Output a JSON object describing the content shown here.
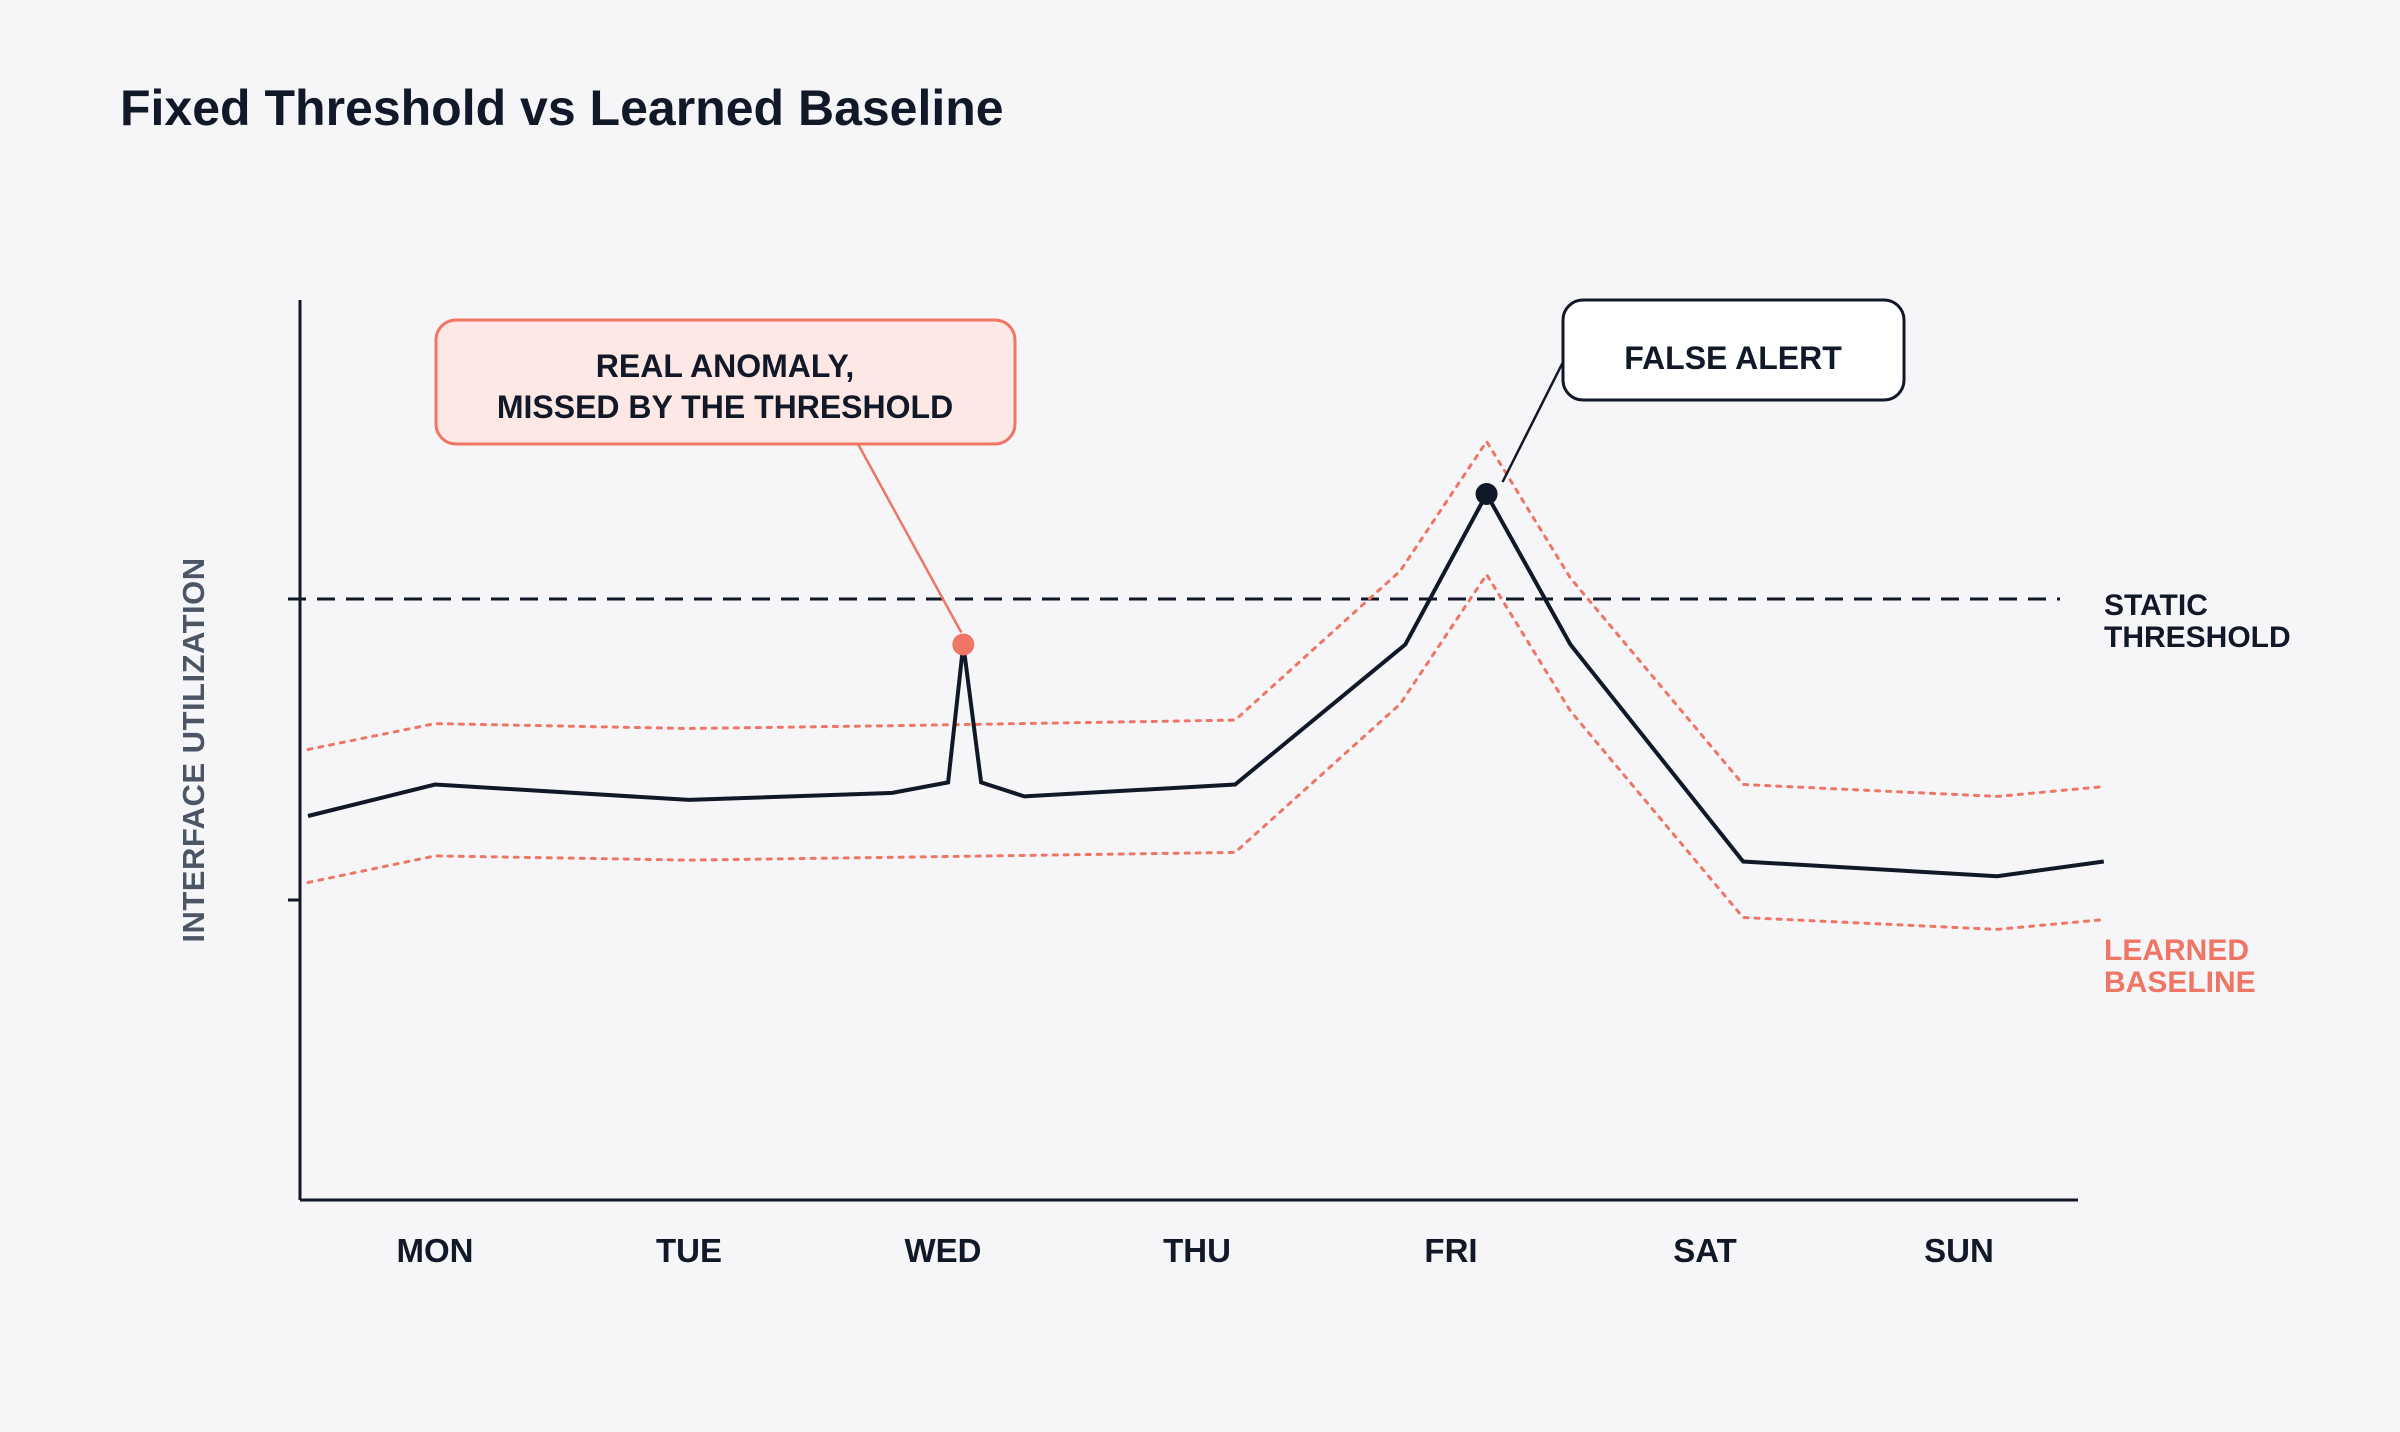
{
  "chart_data": {
    "type": "line",
    "title": "Fixed Threshold vs Learned Baseline",
    "xlabel": "",
    "ylabel": "INTERFACE UTILIZATION",
    "ylim": [
      0,
      100
    ],
    "grid": false,
    "categories": [
      "MON",
      "TUE",
      "WED",
      "THU",
      "FRI",
      "SAT",
      "SUN"
    ],
    "series": [
      {
        "role": "observed",
        "color": "#111827",
        "points": [
          {
            "x": 0.0,
            "y": 12
          },
          {
            "x": 0.5,
            "y": 16.5
          },
          {
            "x": 1.5,
            "y": 14.3
          },
          {
            "x": 2.3,
            "y": 15.3
          },
          {
            "x": 2.52,
            "y": 16.8
          },
          {
            "x": 2.58,
            "y": 36.5
          },
          {
            "x": 2.65,
            "y": 16.8
          },
          {
            "x": 2.82,
            "y": 14.8
          },
          {
            "x": 3.65,
            "y": 16.5
          },
          {
            "x": 4.32,
            "y": 36.5
          },
          {
            "x": 4.64,
            "y": 58
          },
          {
            "x": 4.97,
            "y": 36.5
          },
          {
            "x": 5.65,
            "y": 5.5
          },
          {
            "x": 6.65,
            "y": 3.4
          },
          {
            "x": 7.07,
            "y": 5.5
          }
        ]
      },
      {
        "role": "baseline-upper",
        "color": "#ef7564",
        "points": [
          {
            "x": 0.0,
            "y": 21.5
          },
          {
            "x": 0.5,
            "y": 25.2
          },
          {
            "x": 1.5,
            "y": 24.5
          },
          {
            "x": 2.3,
            "y": 24.9
          },
          {
            "x": 3.65,
            "y": 25.7
          },
          {
            "x": 4.3,
            "y": 47
          },
          {
            "x": 4.64,
            "y": 65.5
          },
          {
            "x": 4.97,
            "y": 46
          },
          {
            "x": 5.65,
            "y": 16.5
          },
          {
            "x": 6.65,
            "y": 14.8
          },
          {
            "x": 7.07,
            "y": 16.2
          }
        ]
      },
      {
        "role": "baseline-lower",
        "color": "#ef7564",
        "points": [
          {
            "x": 0.0,
            "y": 2.5
          },
          {
            "x": 0.5,
            "y": 6.3
          },
          {
            "x": 1.5,
            "y": 5.7
          },
          {
            "x": 2.3,
            "y": 6.1
          },
          {
            "x": 3.65,
            "y": 6.8
          },
          {
            "x": 4.3,
            "y": 28
          },
          {
            "x": 4.64,
            "y": 46.5
          },
          {
            "x": 4.97,
            "y": 27
          },
          {
            "x": 5.65,
            "y": -2.5
          },
          {
            "x": 6.65,
            "y": -4.2
          },
          {
            "x": 7.07,
            "y": -2.8
          }
        ]
      }
    ],
    "threshold": {
      "y": 43,
      "label_line1": "STATIC",
      "label_line2": "THRESHOLD",
      "color": "#111827"
    },
    "baseline_label": {
      "line1": "LEARNED",
      "line2": "BASELINE",
      "color": "#ef7564"
    },
    "annotations": [
      {
        "id": "real-anomaly",
        "text_line1": "REAL ANOMALY,",
        "text_line2": "MISSED BY THE THRESHOLD",
        "point": {
          "x": 2.58,
          "y": 36.5
        },
        "fill": "#fde8e5",
        "stroke": "#ef7564",
        "marker_color": "#ef7564"
      },
      {
        "id": "false-alert",
        "text_line1": "FALSE ALERT",
        "point": {
          "x": 4.64,
          "y": 58
        },
        "fill": "#ffffff",
        "stroke": "#111827",
        "marker_color": "#111827"
      }
    ]
  }
}
